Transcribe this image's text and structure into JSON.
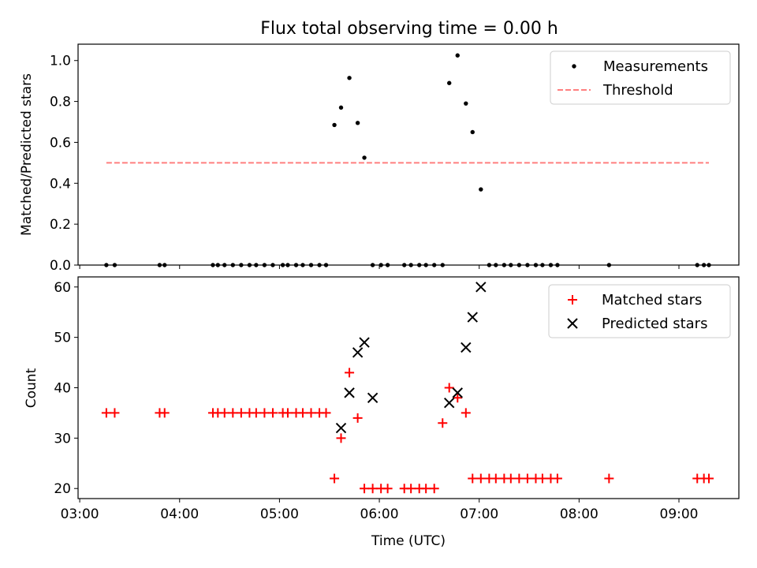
{
  "figure_title": "Flux total observing time = 0.00 h",
  "colors": {
    "measurement": "#000000",
    "threshold": "#ff7f7f",
    "matched": "#ff0000",
    "predicted": "#000000",
    "axis": "#000000"
  },
  "chart_data": [
    {
      "type": "scatter",
      "panel": "top",
      "title": "Flux total observing time = 0.00 h",
      "ylabel": "Matched/Predicted stars",
      "xlabel": "",
      "xlim": [
        "02:59",
        "09:36"
      ],
      "ylim": [
        0,
        1.08
      ],
      "yticks": [
        0.0,
        0.2,
        0.4,
        0.6,
        0.8,
        1.0
      ],
      "ytick_labels": [
        "0.0",
        "0.2",
        "0.4",
        "0.6",
        "0.8",
        "1.0"
      ],
      "xticks": [
        "03:00",
        "04:00",
        "05:00",
        "06:00",
        "07:00",
        "08:00",
        "09:00"
      ],
      "xtick_labels_shown": false,
      "legend_position": "top-right",
      "series": [
        {
          "name": "Measurements",
          "marker": "dot",
          "x": [
            "03:16",
            "03:21",
            "03:48",
            "03:51",
            "04:20",
            "04:23",
            "04:27",
            "04:32",
            "04:37",
            "04:42",
            "04:46",
            "04:51",
            "04:56",
            "05:02",
            "05:05",
            "05:10",
            "05:14",
            "05:19",
            "05:24",
            "05:28",
            "05:33",
            "05:37",
            "05:42",
            "05:47",
            "05:51",
            "05:56",
            "06:01",
            "06:05",
            "06:15",
            "06:19",
            "06:24",
            "06:28",
            "06:33",
            "06:38",
            "06:42",
            "06:47",
            "06:52",
            "06:56",
            "07:01",
            "07:06",
            "07:10",
            "07:15",
            "07:19",
            "07:24",
            "07:29",
            "07:34",
            "07:38",
            "07:43",
            "07:47",
            "08:18",
            "09:11",
            "09:15",
            "09:18"
          ],
          "y": [
            0,
            0,
            0,
            0,
            0,
            0,
            0,
            0,
            0,
            0,
            0,
            0,
            0,
            0,
            0,
            0,
            0,
            0,
            0,
            0,
            0.685,
            0.77,
            0.915,
            0.695,
            0.525,
            0,
            0,
            0,
            0,
            0,
            0,
            0,
            0,
            0,
            0.89,
            1.025,
            0.79,
            0.65,
            0.37,
            0,
            0,
            0,
            0,
            0,
            0,
            0,
            0,
            0,
            0,
            0,
            0,
            0,
            0
          ]
        },
        {
          "name": "Threshold",
          "marker": "dashed-line",
          "x": [
            "03:16",
            "09:18"
          ],
          "y": [
            0.5,
            0.5
          ]
        }
      ]
    },
    {
      "type": "scatter",
      "panel": "bottom",
      "title": "",
      "ylabel": "Count",
      "xlabel": "Time (UTC)",
      "xlim": [
        "02:59",
        "09:36"
      ],
      "ylim": [
        18,
        62
      ],
      "yticks": [
        20,
        30,
        40,
        50,
        60
      ],
      "ytick_labels": [
        "20",
        "30",
        "40",
        "50",
        "60"
      ],
      "xticks": [
        "03:00",
        "04:00",
        "05:00",
        "06:00",
        "07:00",
        "08:00",
        "09:00"
      ],
      "xtick_labels": [
        "03:00",
        "04:00",
        "05:00",
        "06:00",
        "07:00",
        "08:00",
        "09:00"
      ],
      "legend_position": "top-right",
      "series": [
        {
          "name": "Matched stars",
          "marker": "plus",
          "x": [
            "03:16",
            "03:21",
            "03:48",
            "03:51",
            "04:20",
            "04:23",
            "04:27",
            "04:32",
            "04:37",
            "04:42",
            "04:46",
            "04:51",
            "04:56",
            "05:02",
            "05:05",
            "05:10",
            "05:14",
            "05:19",
            "05:24",
            "05:28",
            "05:33",
            "05:37",
            "05:42",
            "05:47",
            "05:51",
            "05:56",
            "06:01",
            "06:05",
            "06:15",
            "06:19",
            "06:24",
            "06:28",
            "06:33",
            "06:38",
            "06:42",
            "06:47",
            "06:52",
            "06:56",
            "07:01",
            "07:06",
            "07:10",
            "07:15",
            "07:19",
            "07:24",
            "07:29",
            "07:34",
            "07:38",
            "07:43",
            "07:47",
            "08:18",
            "09:11",
            "09:15",
            "09:18"
          ],
          "y": [
            35,
            35,
            35,
            35,
            35,
            35,
            35,
            35,
            35,
            35,
            35,
            35,
            35,
            35,
            35,
            35,
            35,
            35,
            35,
            35,
            22,
            30,
            43,
            34,
            20,
            20,
            20,
            20,
            20,
            20,
            20,
            20,
            20,
            33,
            40,
            38,
            35,
            22,
            22,
            22,
            22,
            22,
            22,
            22,
            22,
            22,
            22,
            22,
            22,
            22,
            22,
            22,
            22
          ]
        },
        {
          "name": "Predicted stars",
          "marker": "x",
          "x": [
            "05:37",
            "05:42",
            "05:47",
            "05:51",
            "05:56",
            "06:42",
            "06:47",
            "06:52",
            "06:56",
            "07:01"
          ],
          "y": [
            32,
            39,
            47,
            49,
            38,
            37,
            39,
            48,
            54,
            60
          ]
        }
      ]
    }
  ]
}
